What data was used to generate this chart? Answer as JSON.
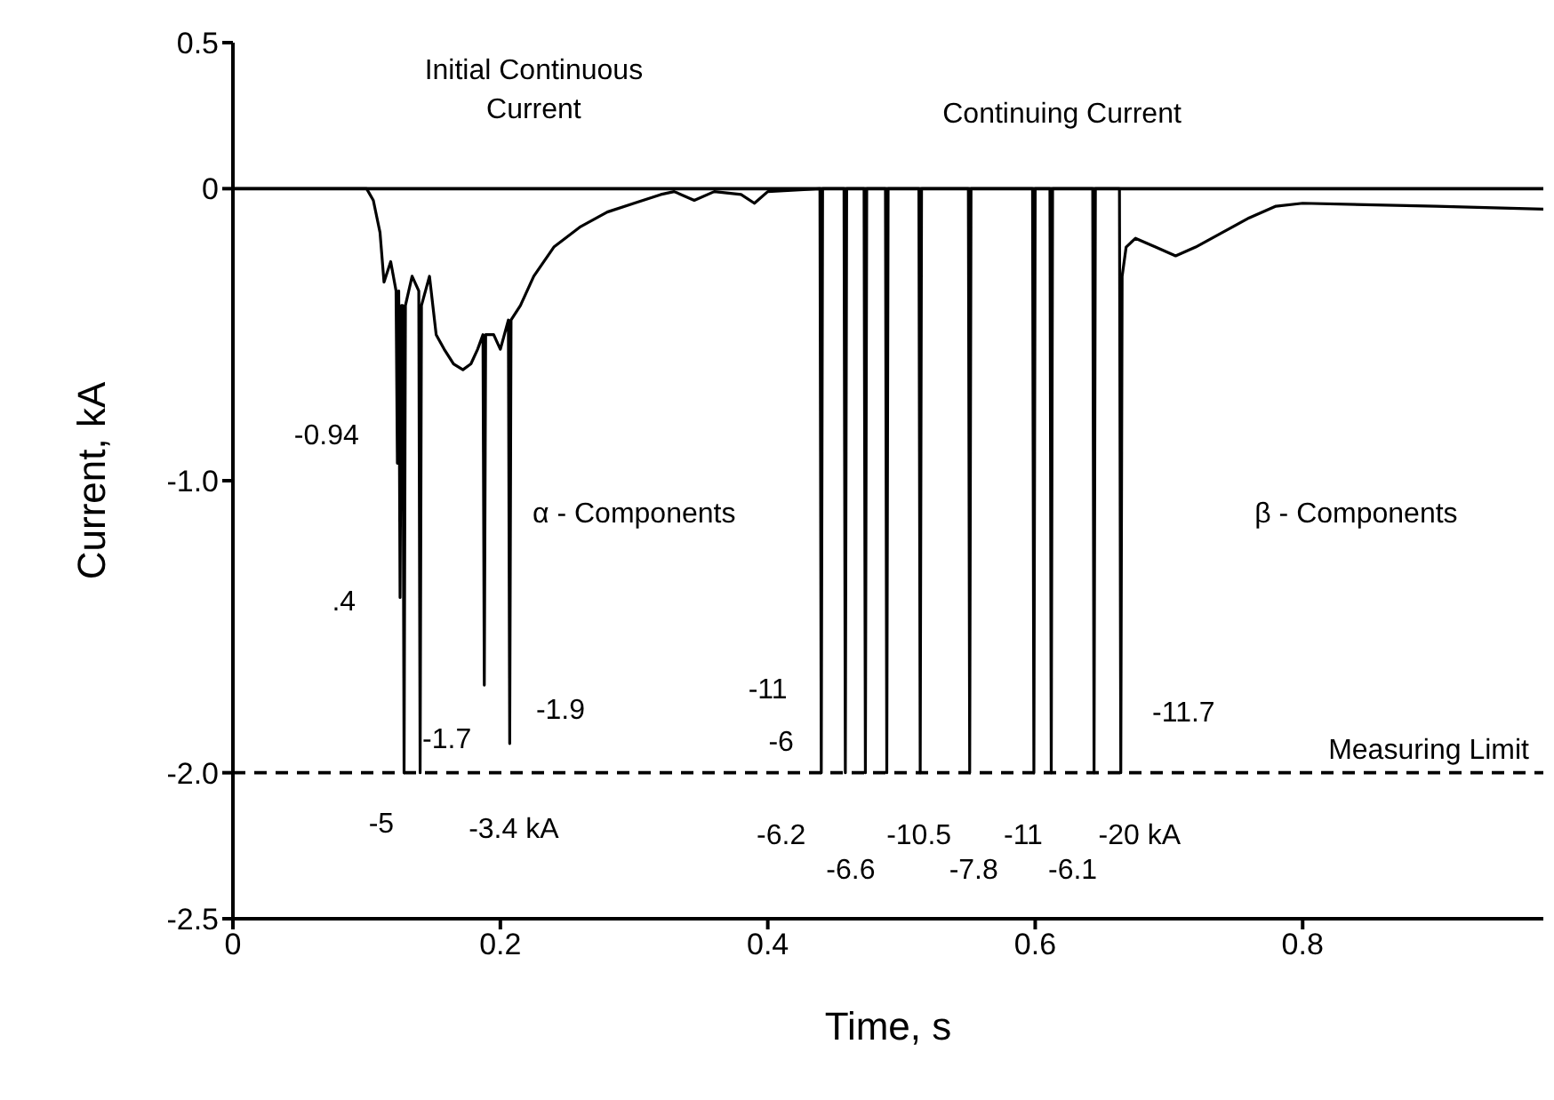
{
  "chart_data": {
    "type": "line",
    "xlabel": "Time, s",
    "ylabel": "Current, kA",
    "xlim": [
      0,
      0.98
    ],
    "xticks": [
      0,
      0.2,
      0.4,
      0.6,
      0.8
    ],
    "ylim": [
      -2.5,
      0.5
    ],
    "yticks": [
      0.5,
      0,
      {
        "value": -1,
        "label": "-1.0"
      },
      {
        "value": -2,
        "label": "-2.0"
      },
      -2.5
    ],
    "grid": false,
    "legend": false,
    "marker": "none",
    "line_style": "solid",
    "x": [
      0,
      0.1,
      0.105,
      0.11,
      0.113,
      0.118,
      0.122,
      0.123,
      0.124,
      0.125,
      0.126,
      0.127,
      0.128,
      0.129,
      0.134,
      0.139,
      0.14,
      0.141,
      0.147,
      0.152,
      0.158,
      0.165,
      0.172,
      0.178,
      0.183,
      0.187,
      0.188,
      0.189,
      0.195,
      0.2,
      0.206,
      0.207,
      0.208,
      0.215,
      0.225,
      0.24,
      0.26,
      0.28,
      0.3,
      0.32,
      0.33,
      0.345,
      0.36,
      0.38,
      0.39,
      0.4,
      0.439,
      0.44,
      0.441,
      0.457,
      0.458,
      0.459,
      0.472,
      0.473,
      0.474,
      0.488,
      0.489,
      0.49,
      0.513,
      0.514,
      0.515,
      0.55,
      0.551,
      0.552,
      0.598,
      0.599,
      0.6,
      0.611,
      0.612,
      0.613,
      0.643,
      0.644,
      0.645,
      0.663,
      0.664,
      0.665,
      0.668,
      0.675,
      0.69,
      0.705,
      0.72,
      0.74,
      0.76,
      0.78,
      0.8,
      0.9,
      0.98
    ],
    "series": [
      {
        "color": "#000000",
        "values": [
          0,
          0,
          -0.04,
          -0.15,
          -0.32,
          -0.25,
          -0.35,
          -0.94,
          -0.35,
          -1.4,
          -0.4,
          -0.4,
          -2.0,
          -0.4,
          -0.3,
          -0.35,
          -2.0,
          -0.4,
          -0.3,
          -0.5,
          -0.55,
          -0.6,
          -0.62,
          -0.6,
          -0.55,
          -0.5,
          -1.7,
          -0.5,
          -0.5,
          -0.55,
          -0.45,
          -1.9,
          -0.45,
          -0.4,
          -0.3,
          -0.2,
          -0.13,
          -0.08,
          -0.05,
          -0.02,
          -0.01,
          -0.04,
          -0.01,
          -0.02,
          -0.05,
          -0.01,
          0,
          -2.0,
          0,
          0,
          -2.0,
          0,
          0,
          -2.0,
          0,
          0,
          -2.0,
          0,
          0,
          -2.0,
          0,
          0,
          -2.0,
          0,
          0,
          -2.0,
          0,
          0,
          -2.0,
          0,
          0,
          -2.0,
          0,
          0,
          -2.0,
          -0.3,
          -0.2,
          -0.17,
          -0.2,
          -0.23,
          -0.2,
          -0.15,
          -0.1,
          -0.06,
          -0.05,
          -0.06,
          -0.07
        ]
      }
    ],
    "ref_lines": [
      {
        "axis": "y",
        "value": 0,
        "line_style": "solid",
        "color": "#000000"
      },
      {
        "axis": "y",
        "value": -2,
        "label": "Measuring Limit",
        "line_style": "dashed",
        "color": "#000000"
      }
    ],
    "annotations": [
      "Initial Continuous Current",
      "Continuing Current",
      "α - Components",
      "β - Components",
      "-0.94",
      ".4",
      "-1.7",
      "-1.9",
      "-5",
      "-3.4 kA",
      "-11",
      "-6",
      "-6.2",
      "-6.6",
      "-10.5",
      "-7.8",
      "-11",
      "-6.1",
      "-20 kA",
      "-11.7"
    ]
  }
}
